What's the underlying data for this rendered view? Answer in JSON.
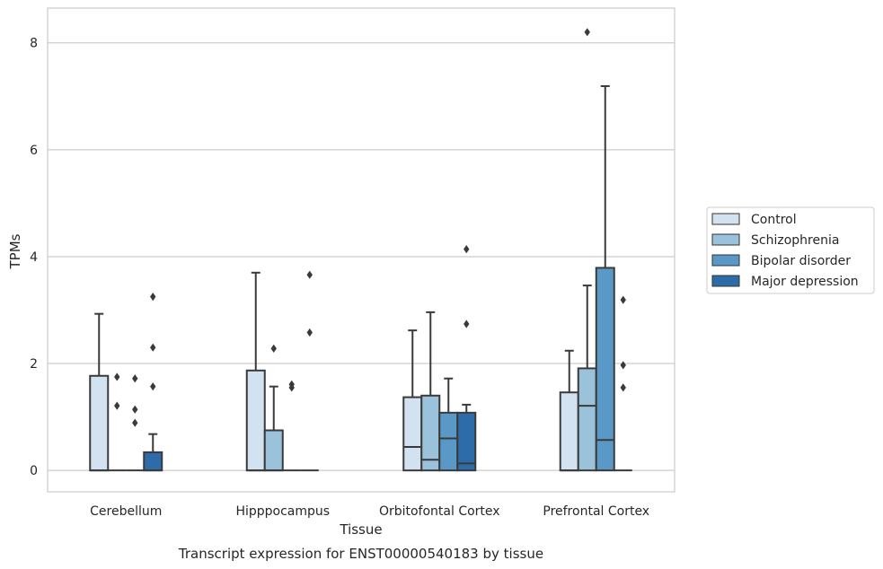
{
  "chart_data": {
    "type": "box",
    "xlabel": "Tissue",
    "ylabel": "TPMs",
    "caption": "Transcript expression for ENST00000540183 by tissue",
    "ylim": [
      -0.4,
      8.65
    ],
    "yticks": [
      0,
      2,
      4,
      6,
      8
    ],
    "grid": "horizontal",
    "legend_position": "right",
    "categories": [
      "Cerebellum",
      "Hipppocampus",
      "Orbitofontal Cortex",
      "Prefrontal Cortex"
    ],
    "series": [
      {
        "name": "Control",
        "color": "#d3e2f1",
        "boxes": [
          {
            "q1": 0,
            "median": 0,
            "q3": 1.77,
            "whisker_low": 0,
            "whisker_high": 2.93,
            "outliers": []
          },
          {
            "q1": 0,
            "median": 0,
            "q3": 1.87,
            "whisker_low": 0,
            "whisker_high": 3.7,
            "outliers": []
          },
          {
            "q1": 0,
            "median": 0.44,
            "q3": 1.37,
            "whisker_low": 0,
            "whisker_high": 2.62,
            "outliers": []
          },
          {
            "q1": 0,
            "median": 0,
            "q3": 1.46,
            "whisker_low": 0,
            "whisker_high": 2.24,
            "outliers": []
          }
        ]
      },
      {
        "name": "Schizophrenia",
        "color": "#9ac2db",
        "boxes": [
          {
            "q1": 0,
            "median": 0,
            "q3": 0,
            "whisker_low": 0,
            "whisker_high": 0,
            "outliers": [
              1.75,
              1.21
            ]
          },
          {
            "q1": 0,
            "median": 0,
            "q3": 0.75,
            "whisker_low": 0,
            "whisker_high": 1.57,
            "outliers": [
              2.28
            ]
          },
          {
            "q1": 0,
            "median": 0.2,
            "q3": 1.4,
            "whisker_low": 0,
            "whisker_high": 2.96,
            "outliers": []
          },
          {
            "q1": 0,
            "median": 1.21,
            "q3": 1.91,
            "whisker_low": 0,
            "whisker_high": 3.46,
            "outliers": [
              8.2
            ]
          }
        ]
      },
      {
        "name": "Bipolar disorder",
        "color": "#5a99c7",
        "boxes": [
          {
            "q1": 0,
            "median": 0,
            "q3": 0,
            "whisker_low": 0,
            "whisker_high": 0,
            "outliers": [
              1.72,
              1.14,
              0.89
            ]
          },
          {
            "q1": 0,
            "median": 0,
            "q3": 0,
            "whisker_low": 0,
            "whisker_high": 0,
            "outliers": [
              1.61,
              1.55
            ]
          },
          {
            "q1": 0,
            "median": 0.6,
            "q3": 1.08,
            "whisker_low": 0,
            "whisker_high": 1.72,
            "outliers": []
          },
          {
            "q1": 0,
            "median": 0.57,
            "q3": 3.79,
            "whisker_low": 0,
            "whisker_high": 7.19,
            "outliers": []
          }
        ]
      },
      {
        "name": "Major depression",
        "color": "#2d6ca8",
        "boxes": [
          {
            "q1": 0,
            "median": 0,
            "q3": 0.34,
            "whisker_low": 0,
            "whisker_high": 0.68,
            "outliers": [
              3.25,
              2.3,
              1.57
            ]
          },
          {
            "q1": 0,
            "median": 0,
            "q3": 0,
            "whisker_low": 0,
            "whisker_high": 0,
            "outliers": [
              3.66,
              2.58
            ]
          },
          {
            "q1": 0,
            "median": 0.13,
            "q3": 1.08,
            "whisker_low": 0,
            "whisker_high": 1.23,
            "outliers": [
              4.14,
              2.74
            ]
          },
          {
            "q1": 0,
            "median": 0,
            "q3": 0,
            "whisker_low": 0,
            "whisker_high": 0,
            "outliers": [
              3.19,
              1.97,
              1.55
            ]
          }
        ]
      }
    ]
  }
}
